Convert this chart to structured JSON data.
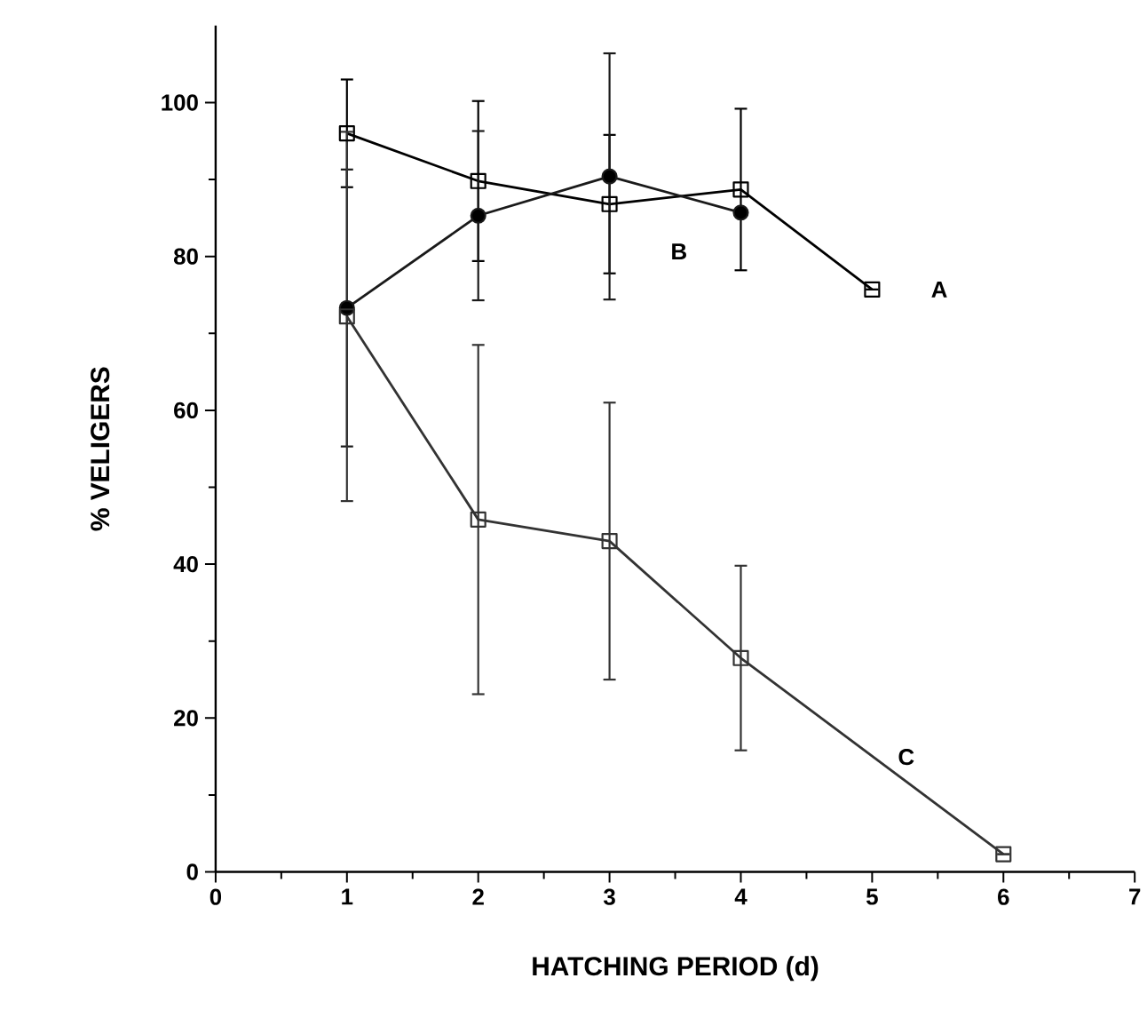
{
  "chart_data": {
    "type": "line",
    "xlabel": "HATCHING PERIOD (d)",
    "ylabel": "% VELIGERS",
    "xlim": [
      0,
      7
    ],
    "xticks": [
      0,
      1,
      2,
      3,
      4,
      5,
      6,
      7
    ],
    "ylim": [
      0,
      110
    ],
    "yticks": [
      0,
      20,
      40,
      60,
      80,
      100
    ],
    "grid": false,
    "legend": false,
    "line_style": "solid",
    "series": [
      {
        "name": "A",
        "color": "#000000",
        "marker": "square",
        "x": [
          1,
          2,
          3,
          4,
          5
        ],
        "values": [
          96,
          89.8,
          86.8,
          88.7,
          75.7
        ],
        "errors": [
          7,
          10.4,
          9,
          10.5,
          null
        ]
      },
      {
        "name": "B",
        "color": "#1a1a1a",
        "marker": "circle",
        "x": [
          1,
          2,
          3,
          4
        ],
        "values": [
          73.3,
          85.3,
          90.4,
          85.7
        ],
        "errors": [
          18,
          11,
          16,
          null
        ]
      },
      {
        "name": "C",
        "color": "#333333",
        "marker": "square",
        "x": [
          1,
          2,
          3,
          4,
          6
        ],
        "values": [
          72.2,
          45.8,
          43,
          27.8,
          2.3
        ],
        "errors": [
          24,
          22.7,
          18,
          12,
          null
        ]
      }
    ]
  }
}
